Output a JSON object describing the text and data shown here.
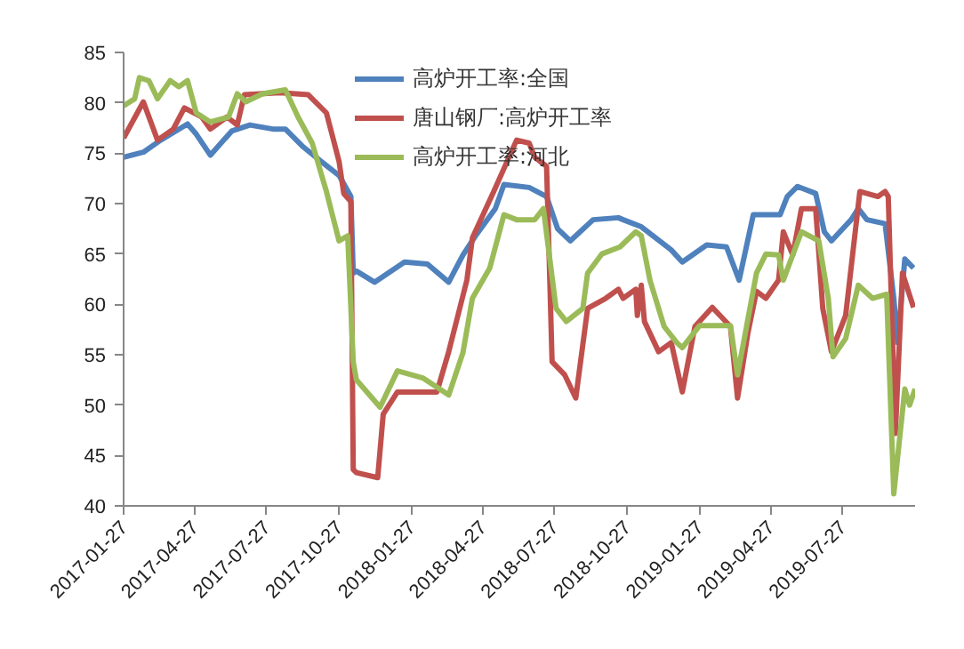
{
  "chart_data": {
    "type": "line",
    "xlim": [
      "2017-01-27",
      "2019-10-27"
    ],
    "xticks": [
      "2017-01-27",
      "2017-04-27",
      "2017-07-27",
      "2017-10-27",
      "2018-01-27",
      "2018-04-27",
      "2018-07-27",
      "2018-10-27",
      "2019-01-27",
      "2019-04-27",
      "2019-07-27"
    ],
    "ylim": [
      40,
      85
    ],
    "yticks": [
      40,
      45,
      50,
      55,
      60,
      65,
      70,
      75,
      80,
      85
    ],
    "grid": false,
    "legend": "top",
    "marker": "none",
    "line_style": "solid",
    "series": [
      {
        "name": "高炉开工率:全国",
        "color": "#4f81bd",
        "x": [
          "2017-01-27",
          "2017-02-21",
          "2017-03-15",
          "2017-04-18",
          "2017-04-29",
          "2017-05-17",
          "2017-06-13",
          "2017-07-06",
          "2017-08-04",
          "2017-08-20",
          "2017-09-12",
          "2017-10-04",
          "2017-10-27",
          "2017-11-11",
          "2017-11-14",
          "2017-11-18",
          "2017-12-11",
          "2018-01-18",
          "2018-02-16",
          "2018-03-15",
          "2018-04-02",
          "2018-04-18",
          "2018-05-13",
          "2018-05-24",
          "2018-06-25",
          "2018-07-17",
          "2018-07-31",
          "2018-08-16",
          "2018-09-14",
          "2018-10-16",
          "2018-10-22",
          "2018-11-14",
          "2018-12-22",
          "2019-01-05",
          "2019-02-05",
          "2019-03-02",
          "2019-03-18",
          "2019-04-05",
          "2019-05-09",
          "2019-05-18",
          "2019-05-31",
          "2019-06-23",
          "2019-07-04",
          "2019-07-13",
          "2019-08-07",
          "2019-08-16",
          "2019-08-27",
          "2019-09-19",
          "2019-09-30",
          "2019-10-05",
          "2019-10-14",
          "2019-10-25"
        ],
        "values": [
          74.6,
          75.1,
          76.3,
          77.9,
          76.9,
          74.8,
          77.2,
          77.8,
          77.4,
          77.4,
          75.6,
          74.2,
          72.8,
          70.7,
          63.1,
          63.3,
          62.2,
          64.2,
          64.0,
          62.2,
          64.9,
          66.8,
          69.5,
          71.9,
          71.6,
          70.7,
          67.5,
          66.3,
          68.4,
          68.6,
          68.4,
          67.7,
          65.4,
          64.2,
          65.9,
          65.7,
          62.4,
          68.9,
          68.9,
          70.7,
          71.7,
          71.0,
          67.2,
          66.3,
          68.4,
          69.5,
          68.4,
          68.0,
          60.6,
          56.2,
          64.5,
          63.6
        ]
      },
      {
        "name": "唐山钢厂:高炉开工率",
        "color": "#c0504d",
        "x": [
          "2017-01-27",
          "2017-02-21",
          "2017-03-11",
          "2017-03-31",
          "2017-04-14",
          "2017-05-06",
          "2017-05-17",
          "2017-06-07",
          "2017-06-20",
          "2017-06-29",
          "2017-08-13",
          "2017-09-18",
          "2017-10-11",
          "2017-10-27",
          "2017-11-02",
          "2017-11-11",
          "2017-11-14",
          "2017-11-18",
          "2017-12-15",
          "2017-12-22",
          "2018-01-09",
          "2018-02-28",
          "2018-03-15",
          "2018-04-07",
          "2018-04-14",
          "2018-05-11",
          "2018-06-09",
          "2018-06-25",
          "2018-07-02",
          "2018-07-17",
          "2018-07-24",
          "2018-08-09",
          "2018-08-23",
          "2018-09-07",
          "2018-09-30",
          "2018-10-16",
          "2018-10-22",
          "2018-11-07",
          "2018-11-09",
          "2018-11-14",
          "2018-11-18",
          "2018-12-06",
          "2018-12-22",
          "2019-01-05",
          "2019-01-21",
          "2019-02-12",
          "2019-03-07",
          "2019-03-16",
          "2019-03-29",
          "2019-04-09",
          "2019-04-21",
          "2019-05-07",
          "2019-05-13",
          "2019-05-25",
          "2019-06-05",
          "2019-06-23",
          "2019-07-02",
          "2019-07-13",
          "2019-07-31",
          "2019-08-18",
          "2019-09-10",
          "2019-09-19",
          "2019-09-23",
          "2019-10-02",
          "2019-10-11",
          "2019-10-25"
        ],
        "values": [
          76.5,
          80.1,
          76.3,
          77.4,
          79.5,
          78.6,
          77.4,
          78.6,
          77.8,
          80.8,
          81.0,
          80.8,
          79.0,
          74.2,
          71.0,
          70.2,
          43.6,
          43.3,
          42.8,
          49.1,
          51.3,
          51.3,
          55.3,
          62.4,
          66.6,
          71.2,
          76.3,
          76.0,
          74.6,
          73.7,
          54.3,
          53.0,
          50.7,
          59.6,
          60.6,
          61.5,
          60.6,
          61.5,
          58.9,
          61.9,
          58.3,
          55.3,
          56.2,
          51.3,
          57.8,
          59.7,
          57.8,
          50.7,
          57.1,
          61.3,
          60.6,
          62.4,
          67.2,
          64.9,
          69.5,
          69.5,
          59.6,
          55.3,
          58.9,
          71.2,
          70.7,
          71.2,
          70.7,
          47.2,
          63.1,
          59.7
        ]
      },
      {
        "name": "高炉开工率:河北",
        "color": "#9bbb59",
        "x": [
          "2017-01-27",
          "2017-02-10",
          "2017-02-16",
          "2017-02-28",
          "2017-03-11",
          "2017-03-27",
          "2017-04-07",
          "2017-04-18",
          "2017-04-29",
          "2017-05-17",
          "2017-06-09",
          "2017-06-20",
          "2017-07-01",
          "2017-07-22",
          "2017-08-20",
          "2017-09-05",
          "2017-09-23",
          "2017-10-11",
          "2017-10-27",
          "2017-11-07",
          "2017-11-14",
          "2017-11-18",
          "2017-12-18",
          "2018-01-09",
          "2018-02-10",
          "2018-03-15",
          "2018-04-02",
          "2018-04-14",
          "2018-05-06",
          "2018-05-24",
          "2018-06-09",
          "2018-07-02",
          "2018-07-13",
          "2018-07-29",
          "2018-08-11",
          "2018-09-01",
          "2018-09-07",
          "2018-09-25",
          "2018-10-18",
          "2018-11-07",
          "2018-11-14",
          "2018-11-25",
          "2018-12-13",
          "2018-12-29",
          "2019-01-05",
          "2019-01-27",
          "2019-03-07",
          "2019-03-16",
          "2019-04-09",
          "2019-04-21",
          "2019-05-07",
          "2019-05-13",
          "2019-06-05",
          "2019-06-27",
          "2019-07-09",
          "2019-07-15",
          "2019-07-31",
          "2019-08-16",
          "2019-09-03",
          "2019-09-21",
          "2019-09-30",
          "2019-10-14",
          "2019-10-20",
          "2019-10-27"
        ],
        "values": [
          79.7,
          80.4,
          82.5,
          82.2,
          80.4,
          82.2,
          81.6,
          82.2,
          79.0,
          78.1,
          78.6,
          80.9,
          80.1,
          80.9,
          81.3,
          78.6,
          76.0,
          71.2,
          66.3,
          66.8,
          54.3,
          52.5,
          49.8,
          53.4,
          52.7,
          51.0,
          55.2,
          60.6,
          63.6,
          68.9,
          68.4,
          68.4,
          69.5,
          59.6,
          58.3,
          59.6,
          63.1,
          65.0,
          65.7,
          67.2,
          66.8,
          62.4,
          57.8,
          56.2,
          55.7,
          57.9,
          57.9,
          53.0,
          63.1,
          65.0,
          64.9,
          62.4,
          67.2,
          66.3,
          60.6,
          54.8,
          56.6,
          61.9,
          60.6,
          61.0,
          41.2,
          51.6,
          50.0,
          51.6
        ]
      }
    ]
  }
}
